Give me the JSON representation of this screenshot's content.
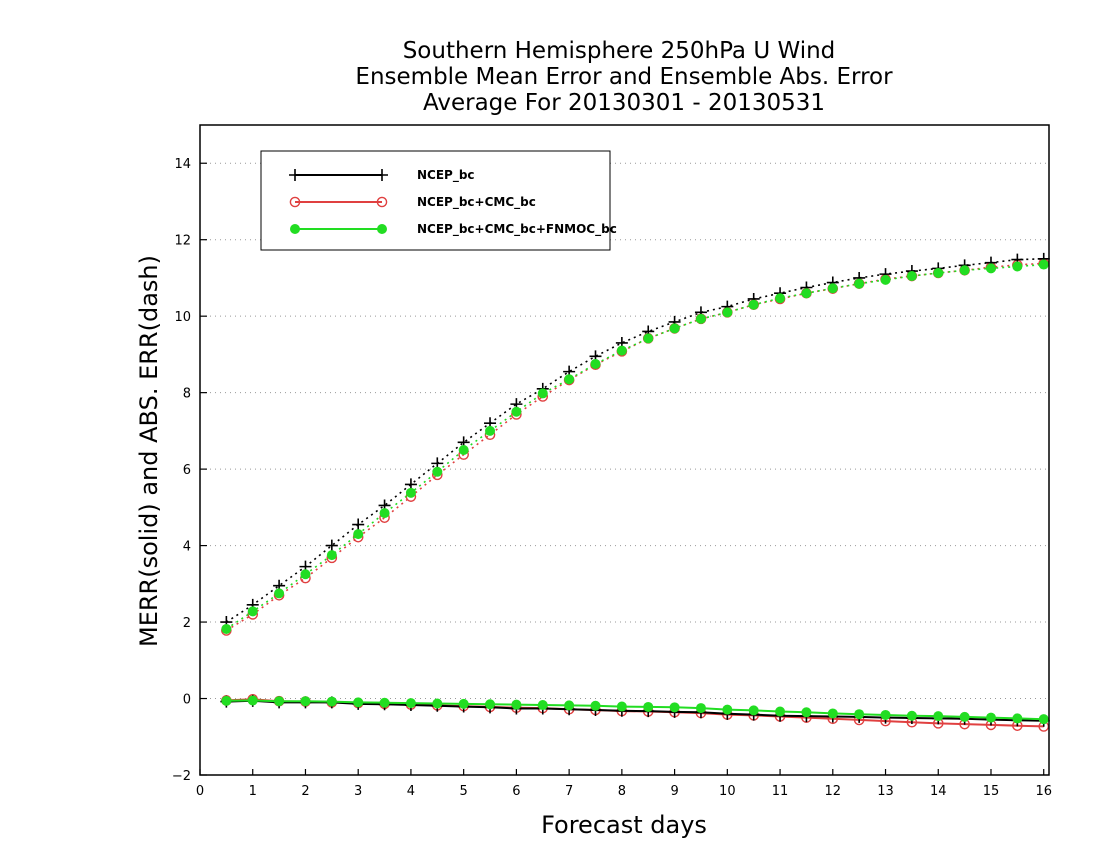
{
  "chart_data": {
    "type": "line",
    "title": [
      "Southern Hemisphere 250hPa U Wind",
      "Ensemble Mean Error and Ensemble Abs. Error",
      "Average For 20130301 - 20130531"
    ],
    "xlabel": "Forecast days",
    "ylabel": "MERR(solid) and ABS. ERR(dash)",
    "xlim": [
      0,
      16.1
    ],
    "ylim": [
      -2,
      15
    ],
    "xticks": [
      0,
      1,
      2,
      3,
      4,
      5,
      6,
      7,
      8,
      9,
      10,
      11,
      12,
      13,
      14,
      15,
      16
    ],
    "xtick_labels": [
      "0",
      "1",
      "2",
      "3",
      "4",
      "5",
      "6",
      "7",
      "8",
      "9",
      "10",
      "11",
      "12",
      "13",
      "14",
      "15",
      "16"
    ],
    "yticks": [
      -2,
      0,
      2,
      4,
      6,
      8,
      10,
      12,
      14
    ],
    "ytick_labels": [
      "−2",
      "0",
      "2",
      "4",
      "6",
      "8",
      "10",
      "12",
      "14"
    ],
    "grid": "horizontal dotted",
    "legend_position": "top-left",
    "x": [
      0.5,
      1,
      1.5,
      2,
      2.5,
      3,
      3.5,
      4,
      4.5,
      5,
      5.5,
      6,
      6.5,
      7,
      7.5,
      8,
      8.5,
      9,
      9.5,
      10,
      10.5,
      11,
      11.5,
      12,
      12.5,
      13,
      13.5,
      14,
      14.5,
      15,
      15.5,
      16
    ],
    "series": [
      {
        "name": "NCEP_bc",
        "color": "#000000",
        "marker": "plus",
        "abs_err": [
          2.0,
          2.45,
          2.95,
          3.45,
          4.0,
          4.55,
          5.05,
          5.6,
          6.15,
          6.7,
          7.2,
          7.7,
          8.1,
          8.55,
          8.95,
          9.3,
          9.6,
          9.85,
          10.1,
          10.25,
          10.45,
          10.6,
          10.75,
          10.88,
          11.0,
          11.1,
          11.18,
          11.25,
          11.33,
          11.4,
          11.48,
          11.5
        ],
        "mean_err": [
          -0.08,
          -0.06,
          -0.1,
          -0.1,
          -0.1,
          -0.14,
          -0.15,
          -0.17,
          -0.19,
          -0.21,
          -0.23,
          -0.26,
          -0.26,
          -0.28,
          -0.3,
          -0.32,
          -0.33,
          -0.35,
          -0.36,
          -0.4,
          -0.42,
          -0.45,
          -0.46,
          -0.47,
          -0.48,
          -0.5,
          -0.51,
          -0.52,
          -0.53,
          -0.55,
          -0.57,
          -0.58
        ]
      },
      {
        "name": "NCEP_bc+CMC_bc",
        "color": "#e04040",
        "marker": "open-circle",
        "abs_err": [
          1.78,
          2.2,
          2.7,
          3.15,
          3.68,
          4.22,
          4.73,
          5.28,
          5.85,
          6.38,
          6.9,
          7.43,
          7.9,
          8.33,
          8.73,
          9.08,
          9.42,
          9.68,
          9.93,
          10.1,
          10.3,
          10.45,
          10.6,
          10.72,
          10.85,
          10.97,
          11.05,
          11.13,
          11.2,
          11.28,
          11.34,
          11.38
        ],
        "mean_err": [
          -0.05,
          -0.02,
          -0.07,
          -0.08,
          -0.1,
          -0.12,
          -0.14,
          -0.16,
          -0.18,
          -0.2,
          -0.22,
          -0.24,
          -0.25,
          -0.28,
          -0.3,
          -0.33,
          -0.34,
          -0.36,
          -0.38,
          -0.42,
          -0.44,
          -0.47,
          -0.5,
          -0.53,
          -0.56,
          -0.59,
          -0.62,
          -0.65,
          -0.67,
          -0.69,
          -0.71,
          -0.73
        ]
      },
      {
        "name": "NCEP_bc+CMC_bc+FNMOC_bc",
        "color": "#22dd22",
        "marker": "filled-circle",
        "abs_err": [
          1.82,
          2.28,
          2.75,
          3.25,
          3.75,
          4.3,
          4.85,
          5.38,
          5.93,
          6.5,
          7.0,
          7.5,
          7.98,
          8.35,
          8.75,
          9.1,
          9.42,
          9.68,
          9.93,
          10.1,
          10.3,
          10.47,
          10.6,
          10.73,
          10.85,
          10.95,
          11.05,
          11.13,
          11.2,
          11.25,
          11.3,
          11.35
        ],
        "mean_err": [
          -0.06,
          -0.05,
          -0.07,
          -0.07,
          -0.08,
          -0.1,
          -0.11,
          -0.12,
          -0.13,
          -0.14,
          -0.15,
          -0.16,
          -0.17,
          -0.18,
          -0.19,
          -0.21,
          -0.22,
          -0.23,
          -0.25,
          -0.29,
          -0.31,
          -0.34,
          -0.36,
          -0.39,
          -0.41,
          -0.43,
          -0.45,
          -0.46,
          -0.48,
          -0.5,
          -0.52,
          -0.54
        ]
      }
    ]
  }
}
